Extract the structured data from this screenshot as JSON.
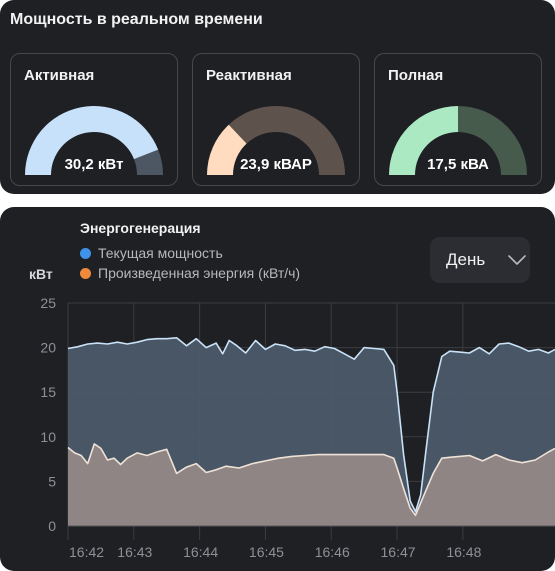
{
  "realtime": {
    "title": "Мощность в реальном времени",
    "gauges": [
      {
        "label": "Активная",
        "value_text": "30,2 кВт",
        "fraction": 0.88,
        "fill_color": "#c7e1fa",
        "track_color": "#4d5763"
      },
      {
        "label": "Реактивная",
        "value_text": "23,9 кВАР",
        "fraction": 0.26,
        "fill_color": "#ffdcc0",
        "track_color": "#5e524d"
      },
      {
        "label": "Полная",
        "value_text": "17,5 кВА",
        "fraction": 0.5,
        "fill_color": "#abe9c3",
        "track_color": "#465b4c"
      }
    ]
  },
  "generation": {
    "title": "Энергогенерация",
    "unit": "кВт",
    "period_dropdown": {
      "selected": "День"
    },
    "legend": [
      {
        "label": "Текущая мощность",
        "color": "#3f93ea"
      },
      {
        "label": "Произведенная энергия (кВт/ч)",
        "color": "#ef8a3c"
      }
    ]
  },
  "chart_data": {
    "type": "area",
    "ylim": [
      0,
      25
    ],
    "xlim": [
      0,
      7.4
    ],
    "y_ticks": [
      "0",
      "5",
      "10",
      "15",
      "20",
      "25"
    ],
    "x_ticks": [
      "16:42",
      "16:43",
      "16:44",
      "16:45",
      "16:46",
      "16:47",
      "16:48"
    ],
    "grid": true,
    "series": [
      {
        "name": "Текущая мощность",
        "color": "#c9e2f7",
        "fill": "#4c5a6a",
        "x": [
          0,
          0.15,
          0.3,
          0.45,
          0.6,
          0.75,
          0.9,
          1.05,
          1.2,
          1.35,
          1.5,
          1.65,
          1.8,
          1.95,
          2.1,
          2.25,
          2.35,
          2.45,
          2.55,
          2.7,
          2.85,
          3.0,
          3.15,
          3.3,
          3.45,
          3.6,
          3.75,
          3.9,
          4.05,
          4.2,
          4.35,
          4.5,
          4.65,
          4.8,
          4.95,
          5.0,
          5.1,
          5.2,
          5.28,
          5.36,
          5.44,
          5.55,
          5.68,
          5.8,
          5.95,
          6.1,
          6.25,
          6.4,
          6.55,
          6.7,
          6.85,
          7.0,
          7.15,
          7.3,
          7.4
        ],
        "y": [
          19.9,
          20.1,
          20.4,
          20.5,
          20.4,
          20.6,
          20.4,
          20.6,
          20.9,
          21.0,
          21.0,
          21.1,
          20.2,
          21.0,
          20.0,
          20.5,
          19.3,
          20.8,
          20.3,
          19.4,
          20.8,
          19.8,
          20.4,
          20.2,
          19.7,
          19.8,
          19.6,
          20.1,
          19.9,
          19.3,
          18.7,
          20.0,
          19.9,
          19.8,
          18.0,
          15.0,
          8.0,
          2.8,
          1.6,
          3.5,
          8.5,
          15.0,
          19.0,
          19.6,
          19.5,
          19.4,
          20.0,
          19.3,
          20.4,
          20.5,
          20.1,
          19.6,
          19.8,
          19.4,
          19.8
        ]
      },
      {
        "name": "Произведенная энергия (кВт/ч)",
        "color": "#efe2d6",
        "fill": "#8f8584",
        "x": [
          0,
          0.1,
          0.2,
          0.3,
          0.4,
          0.5,
          0.6,
          0.7,
          0.8,
          0.9,
          1.05,
          1.2,
          1.35,
          1.5,
          1.65,
          1.8,
          1.95,
          2.1,
          2.25,
          2.4,
          2.6,
          2.8,
          3.0,
          3.2,
          3.4,
          3.6,
          3.8,
          4.0,
          4.2,
          4.4,
          4.6,
          4.8,
          4.95,
          5.0,
          5.1,
          5.2,
          5.28,
          5.36,
          5.44,
          5.55,
          5.68,
          5.8,
          5.95,
          6.1,
          6.3,
          6.5,
          6.7,
          6.9,
          7.1,
          7.3,
          7.4
        ],
        "y": [
          8.8,
          8.2,
          7.9,
          7.0,
          9.2,
          8.7,
          7.4,
          7.6,
          6.9,
          7.6,
          8.2,
          7.9,
          8.3,
          8.6,
          5.9,
          6.6,
          7.0,
          6.0,
          6.3,
          6.7,
          6.5,
          7.0,
          7.3,
          7.6,
          7.8,
          7.9,
          8.0,
          8.0,
          8.0,
          8.0,
          8.0,
          8.0,
          7.6,
          6.5,
          4.2,
          2.0,
          1.2,
          2.6,
          4.0,
          5.9,
          7.6,
          7.7,
          7.8,
          7.9,
          7.3,
          8.0,
          7.4,
          7.1,
          7.4,
          8.3,
          8.7
        ]
      }
    ]
  }
}
